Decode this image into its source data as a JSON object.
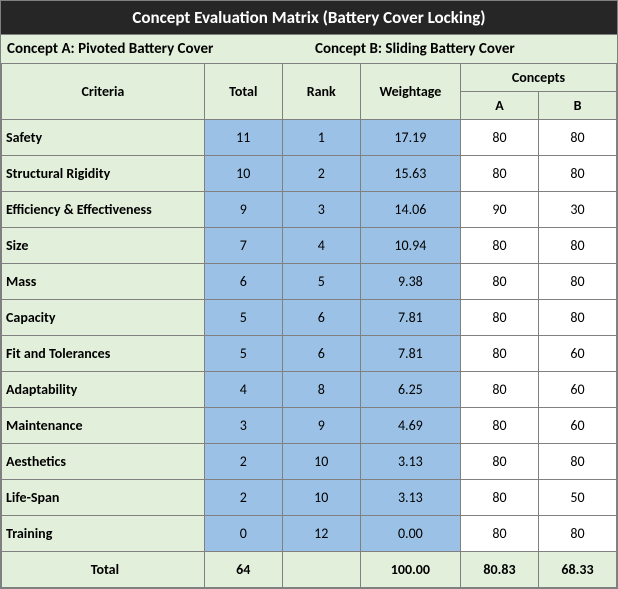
{
  "title": "Concept Evaluation Matrix (Battery Cover Locking)",
  "conceptA": "Concept A: Pivoted Battery Cover",
  "conceptB": "Concept B: Sliding Battery Cover",
  "headers": {
    "criteria": "Criteria",
    "total": "Total",
    "rank": "Rank",
    "weightage": "Weightage",
    "concepts": "Concepts",
    "a": "A",
    "b": "B"
  },
  "rows": [
    {
      "criteria": "Safety",
      "total": "11",
      "rank": "1",
      "weight": "17.19",
      "a": "80",
      "b": "80"
    },
    {
      "criteria": "Structural Rigidity",
      "total": "10",
      "rank": "2",
      "weight": "15.63",
      "a": "80",
      "b": "80"
    },
    {
      "criteria": "Efficiency & Effectiveness",
      "total": "9",
      "rank": "3",
      "weight": "14.06",
      "a": "90",
      "b": "30"
    },
    {
      "criteria": "Size",
      "total": "7",
      "rank": "4",
      "weight": "10.94",
      "a": "80",
      "b": "80"
    },
    {
      "criteria": "Mass",
      "total": "6",
      "rank": "5",
      "weight": "9.38",
      "a": "80",
      "b": "80"
    },
    {
      "criteria": "Capacity",
      "total": "5",
      "rank": "6",
      "weight": "7.81",
      "a": "80",
      "b": "80"
    },
    {
      "criteria": "Fit and Tolerances",
      "total": "5",
      "rank": "6",
      "weight": "7.81",
      "a": "80",
      "b": "60"
    },
    {
      "criteria": "Adaptability",
      "total": "4",
      "rank": "8",
      "weight": "6.25",
      "a": "80",
      "b": "60"
    },
    {
      "criteria": "Maintenance",
      "total": "3",
      "rank": "9",
      "weight": "4.69",
      "a": "80",
      "b": "60"
    },
    {
      "criteria": "Aesthetics",
      "total": "2",
      "rank": "10",
      "weight": "3.13",
      "a": "80",
      "b": "80"
    },
    {
      "criteria": "Life-Span",
      "total": "2",
      "rank": "10",
      "weight": "3.13",
      "a": "80",
      "b": "50"
    },
    {
      "criteria": "Training",
      "total": "0",
      "rank": "12",
      "weight": "0.00",
      "a": "80",
      "b": "80"
    }
  ],
  "totals": {
    "label": "Total",
    "total": "64",
    "rank": "",
    "weight": "100.00",
    "a": "80.83",
    "b": "68.33"
  }
}
